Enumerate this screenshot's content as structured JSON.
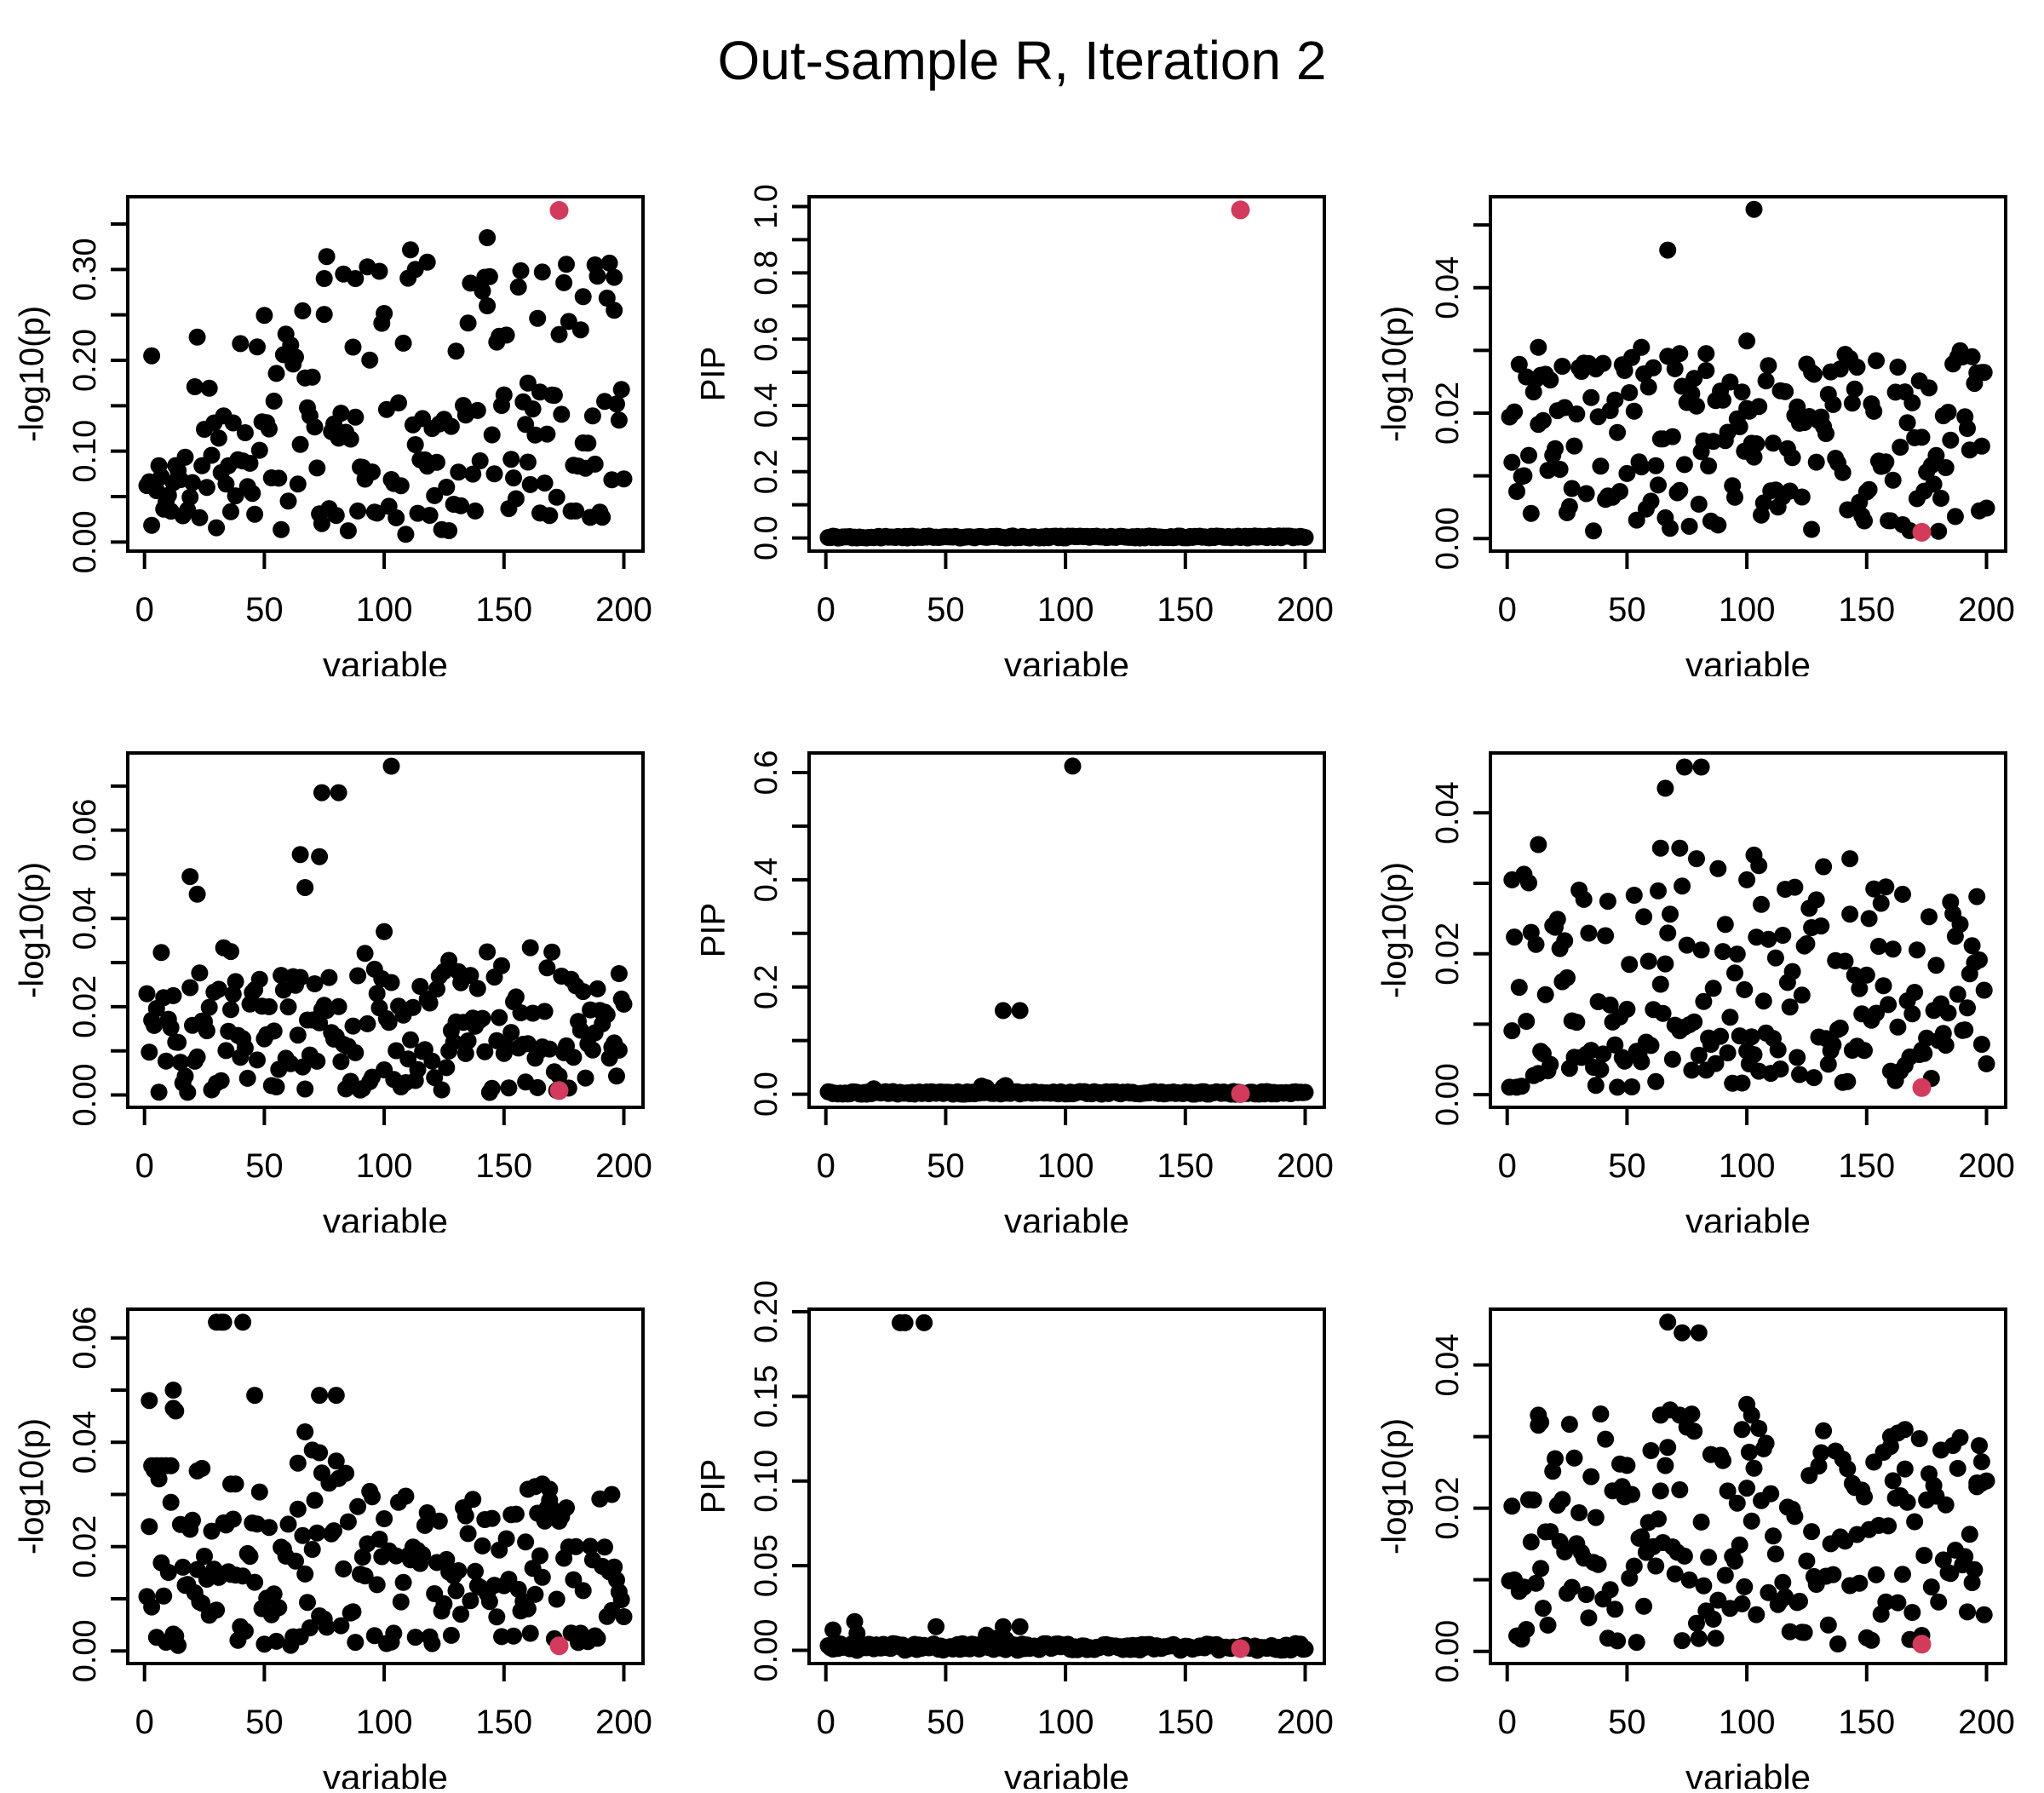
{
  "title": "Out-sample R, Iteration 2",
  "style": {
    "point_color": "#000000",
    "highlight_color": "#D23B5C",
    "axis_color": "#000000",
    "background": "#ffffff"
  },
  "xticks": [
    {
      "v": 0,
      "l": "0"
    },
    {
      "v": 50,
      "l": "50"
    },
    {
      "v": 100,
      "l": "100"
    },
    {
      "v": 150,
      "l": "150"
    },
    {
      "v": 200,
      "l": "200"
    }
  ],
  "chart_data": [
    {
      "name": "plot-r1c1-neglog10p",
      "type": "scatter",
      "xlabel": "variable",
      "ylabel": "-log10(p)",
      "x_range": [
        1,
        200
      ],
      "n_points": 200,
      "seed": 11,
      "ylim": [
        -0.01,
        0.38
      ],
      "yticks": [
        {
          "v": 0.0,
          "l": "0.00"
        },
        {
          "v": 0.05,
          "l": ""
        },
        {
          "v": 0.1,
          "l": "0.10"
        },
        {
          "v": 0.15,
          "l": ""
        },
        {
          "v": 0.2,
          "l": "0.20"
        },
        {
          "v": 0.25,
          "l": ""
        },
        {
          "v": 0.3,
          "l": "0.30"
        },
        {
          "v": 0.35,
          "l": ""
        }
      ],
      "bands": [
        {
          "w": 0.34,
          "y0": 0.025,
          "y1": 0.095
        },
        {
          "w": 0.22,
          "y0": 0.09,
          "y1": 0.15,
          "x0": 25,
          "slope": 0.02
        },
        {
          "w": 0.2,
          "y0": 0.15,
          "y1": 0.23,
          "x0": 20,
          "slope": 0.09
        },
        {
          "w": 0.11,
          "y0": 0.24,
          "y1": 0.3,
          "x0": 60,
          "slope": 0.04
        },
        {
          "w": 0.07,
          "y0": 0.345,
          "y1": 0.36,
          "x0": 140
        },
        {
          "w": 0.06,
          "y0": 0.005,
          "y1": 0.03,
          "x1": 130
        }
      ],
      "outliers": [
        [
          3,
          0.205
        ],
        [
          75,
          0.29
        ],
        [
          83,
          0.295
        ],
        [
          88,
          0.29
        ],
        [
          113,
          0.3
        ],
        [
          118,
          0.308
        ],
        [
          143,
          0.335
        ],
        [
          183,
          0.27
        ],
        [
          188,
          0.305
        ],
        [
          196,
          0.255
        ],
        [
          160,
          0.175
        ],
        [
          165,
          0.165
        ]
      ],
      "highlight": {
        "x": 173,
        "y": 0.365
      }
    },
    {
      "name": "plot-r1c2-pip",
      "type": "scatter",
      "xlabel": "variable",
      "ylabel": "PIP",
      "x_range": [
        1,
        200
      ],
      "n_points": 200,
      "seed": 22,
      "ylim": [
        -0.0396,
        1.0296
      ],
      "yticks": [
        {
          "v": 0.0,
          "l": "0.0"
        },
        {
          "v": 0.1,
          "l": ""
        },
        {
          "v": 0.2,
          "l": "0.2"
        },
        {
          "v": 0.3,
          "l": ""
        },
        {
          "v": 0.4,
          "l": "0.4"
        },
        {
          "v": 0.5,
          "l": ""
        },
        {
          "v": 0.6,
          "l": "0.6"
        },
        {
          "v": 0.7,
          "l": ""
        },
        {
          "v": 0.8,
          "l": "0.8"
        },
        {
          "v": 0.9,
          "l": ""
        },
        {
          "v": 1.0,
          "l": "1.0"
        }
      ],
      "bands": [
        {
          "w": 1.0,
          "y0": 0.0,
          "y1": 0.006
        }
      ],
      "outliers": [],
      "highlight": {
        "x": 173,
        "y": 0.99
      }
    },
    {
      "name": "plot-r1c3-neglog10p",
      "type": "scatter",
      "xlabel": "variable",
      "ylabel": "-log10(p)",
      "x_range": [
        1,
        200
      ],
      "n_points": 200,
      "seed": 33,
      "ylim": [
        -0.002,
        0.0545
      ],
      "yticks": [
        {
          "v": 0.0,
          "l": "0.00"
        },
        {
          "v": 0.01,
          "l": ""
        },
        {
          "v": 0.02,
          "l": "0.02"
        },
        {
          "v": 0.03,
          "l": ""
        },
        {
          "v": 0.04,
          "l": "0.04"
        },
        {
          "v": 0.05,
          "l": ""
        }
      ],
      "bands": [
        {
          "w": 0.4,
          "y0": 0.001,
          "y1": 0.012
        },
        {
          "w": 0.3,
          "y0": 0.012,
          "y1": 0.022
        },
        {
          "w": 0.22,
          "y0": 0.022,
          "y1": 0.028
        },
        {
          "w": 0.08,
          "y0": 0.0255,
          "y1": 0.0305
        }
      ],
      "outliers": [
        [
          103,
          0.0525
        ],
        [
          67,
          0.046
        ],
        [
          100,
          0.0315
        ],
        [
          13,
          0.0305
        ],
        [
          56,
          0.0305
        ],
        [
          72,
          0.0295
        ],
        [
          83,
          0.0295
        ],
        [
          127,
          0.0265
        ],
        [
          198,
          0.0265
        ]
      ],
      "highlight": {
        "x": 173,
        "y": 0.001
      }
    },
    {
      "name": "plot-r2c1-neglog10p",
      "type": "scatter",
      "xlabel": "variable",
      "ylabel": "-log10(p)",
      "x_range": [
        1,
        200
      ],
      "n_points": 200,
      "seed": 44,
      "ylim": [
        -0.0028,
        0.0775
      ],
      "yticks": [
        {
          "v": 0.0,
          "l": "0.00"
        },
        {
          "v": 0.01,
          "l": ""
        },
        {
          "v": 0.02,
          "l": "0.02"
        },
        {
          "v": 0.03,
          "l": ""
        },
        {
          "v": 0.04,
          "l": "0.04"
        },
        {
          "v": 0.05,
          "l": ""
        },
        {
          "v": 0.06,
          "l": "0.06"
        },
        {
          "v": 0.07,
          "l": ""
        }
      ],
      "bands": [
        {
          "w": 0.45,
          "y0": 0.0005,
          "y1": 0.012
        },
        {
          "w": 0.33,
          "y0": 0.012,
          "y1": 0.022
        },
        {
          "w": 0.16,
          "y0": 0.022,
          "y1": 0.028
        },
        {
          "w": 0.06,
          "y0": 0.026,
          "y1": 0.0335
        }
      ],
      "outliers": [
        [
          103,
          0.0745
        ],
        [
          74,
          0.0685
        ],
        [
          81,
          0.0685
        ],
        [
          65,
          0.0545
        ],
        [
          73,
          0.054
        ],
        [
          67,
          0.047
        ],
        [
          19,
          0.0495
        ],
        [
          22,
          0.0455
        ],
        [
          100,
          0.037
        ],
        [
          36,
          0.0325
        ],
        [
          127,
          0.0305
        ],
        [
          198,
          0.0275
        ]
      ],
      "highlight": {
        "x": 173,
        "y": 0.001
      }
    },
    {
      "name": "plot-r2c2-pip",
      "type": "scatter",
      "xlabel": "variable",
      "ylabel": "PIP",
      "x_range": [
        1,
        200
      ],
      "n_points": 200,
      "seed": 55,
      "ylim": [
        -0.0245,
        0.6365
      ],
      "yticks": [
        {
          "v": 0.0,
          "l": "0.0"
        },
        {
          "v": 0.1,
          "l": ""
        },
        {
          "v": 0.2,
          "l": "0.2"
        },
        {
          "v": 0.3,
          "l": ""
        },
        {
          "v": 0.4,
          "l": "0.4"
        },
        {
          "v": 0.5,
          "l": ""
        },
        {
          "v": 0.6,
          "l": "0.6"
        }
      ],
      "bands": [
        {
          "w": 1.0,
          "y0": 0.0,
          "y1": 0.005
        }
      ],
      "outliers": [
        [
          103,
          0.612
        ],
        [
          74,
          0.156
        ],
        [
          81,
          0.156
        ],
        [
          20,
          0.01
        ],
        [
          65,
          0.015
        ],
        [
          67,
          0.012
        ],
        [
          75,
          0.016
        ],
        [
          74,
          0.013
        ]
      ],
      "highlight": {
        "x": 173,
        "y": 0.001
      }
    },
    {
      "name": "plot-r2c3-neglog10p",
      "type": "scatter",
      "xlabel": "variable",
      "ylabel": "-log10(p)",
      "x_range": [
        1,
        200
      ],
      "n_points": 200,
      "seed": 66,
      "ylim": [
        -0.0018,
        0.0485
      ],
      "yticks": [
        {
          "v": 0.0,
          "l": "0.00"
        },
        {
          "v": 0.01,
          "l": ""
        },
        {
          "v": 0.02,
          "l": "0.02"
        },
        {
          "v": 0.03,
          "l": ""
        },
        {
          "v": 0.04,
          "l": "0.04"
        }
      ],
      "bands": [
        {
          "w": 0.42,
          "y0": 0.001,
          "y1": 0.012
        },
        {
          "w": 0.34,
          "y0": 0.012,
          "y1": 0.024
        },
        {
          "w": 0.18,
          "y0": 0.024,
          "y1": 0.03
        },
        {
          "w": 0.06,
          "y0": 0.028,
          "y1": 0.0335
        }
      ],
      "outliers": [
        [
          74,
          0.0465
        ],
        [
          81,
          0.0465
        ],
        [
          66,
          0.0435
        ],
        [
          13,
          0.0355
        ],
        [
          64,
          0.035
        ],
        [
          72,
          0.035
        ],
        [
          2,
          0.0305
        ],
        [
          100,
          0.0305
        ],
        [
          103,
          0.034
        ],
        [
          105,
          0.0325
        ],
        [
          143,
          0.0335
        ]
      ],
      "highlight": {
        "x": 173,
        "y": 0.001
      }
    },
    {
      "name": "plot-r3c1-neglog10p",
      "type": "scatter",
      "xlabel": "variable",
      "ylabel": "-log10(p)",
      "x_range": [
        1,
        200
      ],
      "n_points": 200,
      "seed": 77,
      "ylim": [
        -0.0024,
        0.0655
      ],
      "yticks": [
        {
          "v": 0.0,
          "l": "0.00"
        },
        {
          "v": 0.01,
          "l": ""
        },
        {
          "v": 0.02,
          "l": "0.02"
        },
        {
          "v": 0.03,
          "l": ""
        },
        {
          "v": 0.04,
          "l": "0.04"
        },
        {
          "v": 0.05,
          "l": ""
        },
        {
          "v": 0.06,
          "l": "0.06"
        }
      ],
      "bands": [
        {
          "w": 0.3,
          "y0": 0.001,
          "y1": 0.01
        },
        {
          "w": 0.3,
          "y0": 0.01,
          "y1": 0.02
        },
        {
          "w": 0.25,
          "y0": 0.018,
          "y1": 0.03
        },
        {
          "w": 0.15,
          "y0": 0.028,
          "y1": 0.0365,
          "x1": 110
        }
      ],
      "outliers": [
        [
          30,
          0.063
        ],
        [
          32,
          0.063
        ],
        [
          33,
          0.063
        ],
        [
          41,
          0.063
        ],
        [
          2,
          0.048
        ],
        [
          12,
          0.05
        ],
        [
          13,
          0.046
        ],
        [
          46,
          0.049
        ],
        [
          73,
          0.049
        ],
        [
          80,
          0.049
        ],
        [
          67,
          0.042
        ],
        [
          70,
          0.0385
        ],
        [
          73,
          0.038
        ],
        [
          3,
          0.0355
        ],
        [
          5,
          0.0355
        ],
        [
          7,
          0.0355
        ],
        [
          9,
          0.0355
        ],
        [
          11,
          0.0355
        ],
        [
          22,
          0.0345
        ],
        [
          24,
          0.035
        ],
        [
          64,
          0.036
        ],
        [
          36,
          0.032
        ],
        [
          38,
          0.032
        ],
        [
          160,
          0.031
        ],
        [
          163,
          0.0315
        ],
        [
          166,
          0.032
        ],
        [
          169,
          0.031
        ],
        [
          195,
          0.03
        ],
        [
          12,
          0.0465
        ]
      ],
      "highlight": {
        "x": 173,
        "y": 0.001
      }
    },
    {
      "name": "plot-r3c2-pip",
      "type": "scatter",
      "xlabel": "variable",
      "ylabel": "PIP",
      "x_range": [
        1,
        200
      ],
      "n_points": 200,
      "seed": 88,
      "ylim": [
        -0.0078,
        0.2015
      ],
      "yticks": [
        {
          "v": 0.0,
          "l": "0.00"
        },
        {
          "v": 0.05,
          "l": "0.05"
        },
        {
          "v": 0.1,
          "l": "0.10"
        },
        {
          "v": 0.15,
          "l": "0.15"
        },
        {
          "v": 0.2,
          "l": "0.20"
        }
      ],
      "bands": [
        {
          "w": 1.0,
          "y0": 0.0,
          "y1": 0.004
        }
      ],
      "outliers": [
        [
          31,
          0.1935
        ],
        [
          33,
          0.1935
        ],
        [
          41,
          0.1935
        ],
        [
          12,
          0.017
        ],
        [
          3,
          0.012
        ],
        [
          13,
          0.01
        ],
        [
          46,
          0.014
        ],
        [
          74,
          0.014
        ],
        [
          81,
          0.014
        ],
        [
          67,
          0.009
        ],
        [
          70,
          0.007
        ],
        [
          72,
          0.006
        ],
        [
          75,
          0.0065
        ],
        [
          68,
          0.005
        ]
      ],
      "highlight": {
        "x": 173,
        "y": 0.001
      }
    },
    {
      "name": "plot-r3c3-neglog10p",
      "type": "scatter",
      "xlabel": "variable",
      "ylabel": "-log10(p)",
      "x_range": [
        1,
        200
      ],
      "n_points": 200,
      "seed": 99,
      "ylim": [
        -0.0017,
        0.0478
      ],
      "yticks": [
        {
          "v": 0.0,
          "l": "0.00"
        },
        {
          "v": 0.01,
          "l": ""
        },
        {
          "v": 0.02,
          "l": "0.02"
        },
        {
          "v": 0.03,
          "l": ""
        },
        {
          "v": 0.04,
          "l": "0.04"
        }
      ],
      "bands": [
        {
          "w": 0.42,
          "y0": 0.001,
          "y1": 0.012
        },
        {
          "w": 0.36,
          "y0": 0.012,
          "y1": 0.024
        },
        {
          "w": 0.16,
          "y0": 0.024,
          "y1": 0.03
        },
        {
          "w": 0.06,
          "y0": 0.029,
          "y1": 0.034
        }
      ],
      "outliers": [
        [
          67,
          0.046
        ],
        [
          73,
          0.0445
        ],
        [
          80,
          0.0445
        ],
        [
          100,
          0.0345
        ],
        [
          102,
          0.033
        ],
        [
          13,
          0.033
        ],
        [
          64,
          0.033
        ],
        [
          72,
          0.033
        ],
        [
          98,
          0.031
        ],
        [
          14,
          0.032
        ],
        [
          160,
          0.03
        ],
        [
          163,
          0.0305
        ],
        [
          166,
          0.031
        ],
        [
          196,
          0.023
        ],
        [
          198,
          0.0235
        ]
      ],
      "highlight": {
        "x": 173,
        "y": 0.001
      }
    }
  ]
}
